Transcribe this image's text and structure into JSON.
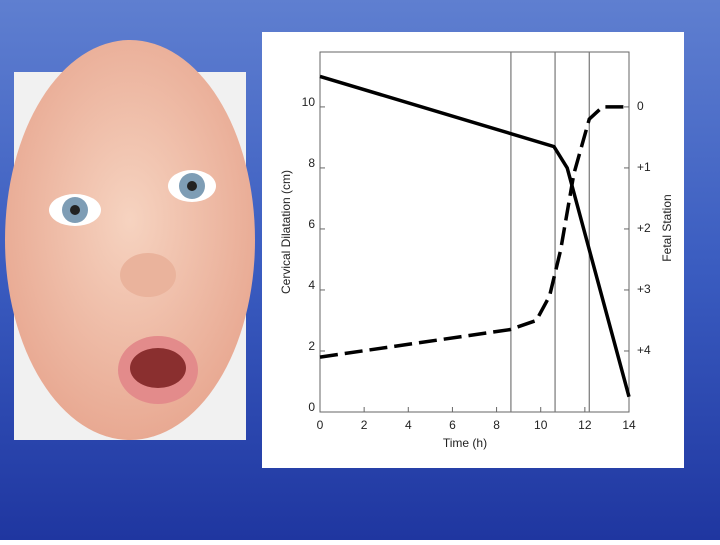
{
  "chart_data": {
    "type": "line",
    "xlabel": "Time (h)",
    "ylabel": "Cervical Dilatation (cm)",
    "y2label": "Fetal Station",
    "xlim": [
      0,
      14
    ],
    "xticks": [
      0,
      2,
      4,
      6,
      8,
      10,
      12,
      14
    ],
    "ylim": [
      0,
      11.8
    ],
    "yticks": [
      0,
      2,
      4,
      6,
      8,
      10
    ],
    "y2lim": [
      5,
      -0.9
    ],
    "y2ticks": [
      0,
      {
        "value": 1,
        "label": "+1"
      },
      {
        "value": 2,
        "label": "+2"
      },
      {
        "value": 3,
        "label": "+3"
      },
      {
        "value": 4,
        "label": "+4"
      }
    ],
    "vlines": [
      8.65,
      10.65,
      12.2
    ],
    "series": [
      {
        "color": "#000000",
        "dashed": false,
        "axis": "y2",
        "x": [
          0,
          10.6,
          11.2,
          14
        ],
        "values": [
          -0.5,
          0.65,
          1.0,
          4.75
        ]
      },
      {
        "color": "#000000",
        "dashed": true,
        "x": [
          0,
          8.6,
          9.8,
          10.4,
          10.9,
          11.5,
          12.2,
          12.8,
          14
        ],
        "values": [
          1.8,
          2.7,
          3.0,
          3.8,
          5.3,
          7.8,
          9.6,
          10,
          10
        ]
      }
    ]
  }
}
